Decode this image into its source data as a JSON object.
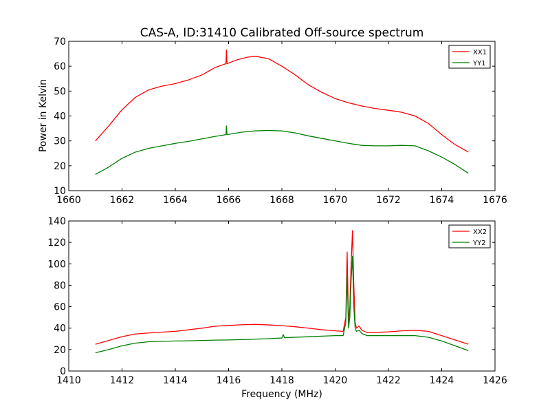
{
  "title": "CAS-A, ID:31410 Calibrated Off-source spectrum",
  "ylabel": "Power in Kelvin",
  "xlabel": "Frequency (MHz)",
  "colors": {
    "xx": "#ff0000",
    "yy": "#007f00"
  },
  "chart_data": [
    {
      "type": "line",
      "xlim": [
        1660,
        1676
      ],
      "ylim": [
        10,
        70
      ],
      "xticks": [
        1660,
        1662,
        1664,
        1666,
        1668,
        1670,
        1672,
        1674,
        1676
      ],
      "yticks": [
        10,
        20,
        30,
        40,
        50,
        60,
        70
      ],
      "legend_position": "top-right",
      "series": [
        {
          "name": "XX1",
          "x": [
            1661.0,
            1661.5,
            1662.0,
            1662.5,
            1663.0,
            1663.5,
            1664.0,
            1664.5,
            1665.0,
            1665.5,
            1665.9,
            1665.92,
            1665.94,
            1666.3,
            1666.7,
            1667.0,
            1667.5,
            1668.0,
            1668.5,
            1669.0,
            1669.5,
            1670.0,
            1670.5,
            1671.0,
            1671.5,
            1672.0,
            1672.5,
            1673.0,
            1673.5,
            1674.0,
            1674.5,
            1675.0
          ],
          "y": [
            30,
            36,
            42.5,
            47.5,
            50.5,
            52,
            53,
            54.5,
            56.5,
            59.5,
            61,
            66.5,
            61,
            62.5,
            63.6,
            64,
            63,
            60,
            56.5,
            52.5,
            49.5,
            47,
            45.3,
            44,
            43,
            42.3,
            41.5,
            40,
            37,
            32.5,
            28.5,
            25.5
          ]
        },
        {
          "name": "YY1",
          "x": [
            1661.0,
            1661.5,
            1662.0,
            1662.5,
            1663.0,
            1663.5,
            1664.0,
            1664.5,
            1665.0,
            1665.5,
            1665.9,
            1665.92,
            1665.94,
            1666.5,
            1667.0,
            1667.5,
            1668.0,
            1668.5,
            1669.0,
            1669.5,
            1670.0,
            1670.5,
            1671.0,
            1671.5,
            1672.0,
            1672.5,
            1673.0,
            1673.5,
            1674.0,
            1674.5,
            1675.0
          ],
          "y": [
            16.5,
            19.5,
            23,
            25.5,
            27,
            28,
            29,
            29.8,
            30.8,
            31.8,
            32.5,
            36,
            32.5,
            33.5,
            34,
            34.2,
            34,
            33.2,
            32,
            31,
            30,
            29,
            28.2,
            28,
            28,
            28.2,
            28,
            26,
            23.5,
            20.5,
            17
          ]
        }
      ]
    },
    {
      "type": "line",
      "xlim": [
        1410,
        1426
      ],
      "ylim": [
        0,
        140
      ],
      "xticks": [
        1410,
        1412,
        1414,
        1416,
        1418,
        1420,
        1422,
        1424,
        1426
      ],
      "yticks": [
        0,
        20,
        40,
        60,
        80,
        100,
        120,
        140
      ],
      "legend_position": "top-right",
      "series": [
        {
          "name": "XX2",
          "x": [
            1411.0,
            1411.5,
            1412.0,
            1412.5,
            1413.0,
            1413.5,
            1414.0,
            1414.5,
            1415.0,
            1415.5,
            1416.0,
            1416.5,
            1417.0,
            1417.5,
            1418.0,
            1418.5,
            1419.0,
            1419.5,
            1420.0,
            1420.3,
            1420.4,
            1420.45,
            1420.5,
            1420.55,
            1420.6,
            1420.65,
            1420.7,
            1420.75,
            1420.8,
            1420.9,
            1421.0,
            1421.2,
            1421.5,
            1422.0,
            1422.5,
            1423.0,
            1423.5,
            1424.0,
            1424.5,
            1425.0
          ],
          "y": [
            25,
            28.5,
            32,
            34.5,
            35.5,
            36.3,
            37,
            38.5,
            40,
            41.8,
            42.5,
            43.2,
            43.5,
            43,
            42.3,
            41.3,
            40,
            38.5,
            37.5,
            37,
            50,
            111,
            45,
            60,
            100,
            131,
            80,
            45,
            40,
            42,
            38,
            36,
            36,
            36.5,
            37.5,
            38,
            37,
            33,
            29,
            25
          ]
        },
        {
          "name": "YY2",
          "x": [
            1411.0,
            1411.5,
            1412.0,
            1412.5,
            1413.0,
            1413.5,
            1414.0,
            1414.5,
            1415.0,
            1415.5,
            1416.0,
            1416.5,
            1417.0,
            1417.5,
            1418.0,
            1418.05,
            1418.1,
            1418.5,
            1419.0,
            1419.5,
            1420.0,
            1420.3,
            1420.4,
            1420.45,
            1420.5,
            1420.55,
            1420.6,
            1420.65,
            1420.7,
            1420.75,
            1420.8,
            1420.9,
            1421.0,
            1421.2,
            1421.5,
            1422.0,
            1422.5,
            1423.0,
            1423.5,
            1424.0,
            1424.5,
            1425.0
          ],
          "y": [
            17,
            20,
            23.5,
            26,
            27.3,
            27.7,
            28,
            28.2,
            28.5,
            28.8,
            29,
            29.3,
            29.7,
            30.2,
            30.8,
            34,
            31,
            31.5,
            32,
            32.5,
            33,
            33,
            45,
            90,
            40,
            50,
            85,
            107,
            60,
            40,
            37,
            38,
            35,
            33,
            33,
            33,
            33,
            33,
            31.5,
            28,
            23.5,
            19
          ]
        }
      ]
    }
  ]
}
